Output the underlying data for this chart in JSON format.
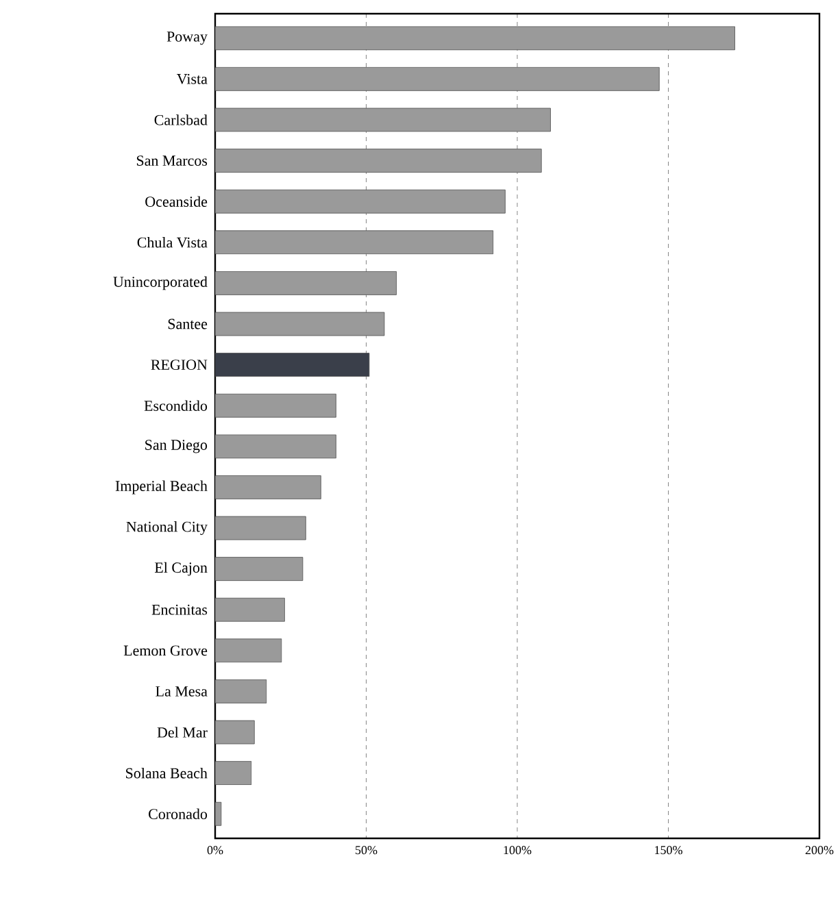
{
  "chart_data": {
    "type": "bar",
    "orientation": "horizontal",
    "categories": [
      "Poway",
      "Vista",
      "Carlsbad",
      "San Marcos",
      "Oceanside",
      "Chula Vista",
      "Unincorporated",
      "Santee",
      "REGION",
      "Escondido",
      "San Diego",
      "Imperial Beach",
      "National City",
      "El Cajon",
      "Encinitas",
      "Lemon Grove",
      "La Mesa",
      "Del Mar",
      "Solana Beach",
      "Coronado"
    ],
    "values": [
      172,
      147,
      111,
      108,
      96,
      92,
      60,
      56,
      51,
      40,
      40,
      35,
      30,
      29,
      23,
      22,
      17,
      13,
      12,
      2
    ],
    "colors": [
      "#9a9a9a",
      "#9a9a9a",
      "#9a9a9a",
      "#9a9a9a",
      "#9a9a9a",
      "#9a9a9a",
      "#9a9a9a",
      "#9a9a9a",
      "#3a3f4a",
      "#9a9a9a",
      "#9a9a9a",
      "#9a9a9a",
      "#9a9a9a",
      "#9a9a9a",
      "#9a9a9a",
      "#9a9a9a",
      "#9a9a9a",
      "#9a9a9a",
      "#9a9a9a",
      "#9a9a9a"
    ],
    "xlim": [
      0,
      200
    ],
    "xticks": [
      {
        "value": 0,
        "label": "0%"
      },
      {
        "value": 50,
        "label": "50%"
      },
      {
        "value": 100,
        "label": "100%"
      },
      {
        "value": 150,
        "label": "150%"
      },
      {
        "value": 200,
        "label": "200%"
      }
    ],
    "grid": "x"
  }
}
